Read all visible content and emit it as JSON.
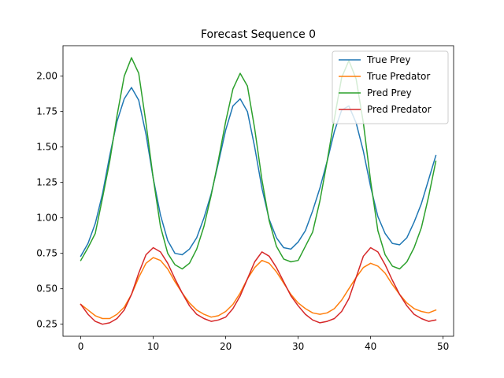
{
  "chart_data": {
    "type": "line",
    "title": "Forecast Sequence 0",
    "xlabel": "",
    "ylabel": "",
    "xlim": [
      -2.45,
      51.45
    ],
    "ylim": [
      0.165,
      2.215
    ],
    "xticks": [
      0,
      10,
      20,
      30,
      40,
      50
    ],
    "yticks": [
      0.25,
      0.5,
      0.75,
      1.0,
      1.25,
      1.5,
      1.75,
      2.0
    ],
    "grid": false,
    "legend_position": "top-right",
    "series": [
      {
        "name": "True Prey",
        "color": "#1f77b4",
        "values": [
          0.73,
          0.82,
          0.96,
          1.17,
          1.44,
          1.68,
          1.84,
          1.92,
          1.83,
          1.59,
          1.28,
          1.02,
          0.84,
          0.75,
          0.74,
          0.78,
          0.86,
          1.0,
          1.17,
          1.39,
          1.62,
          1.79,
          1.84,
          1.75,
          1.5,
          1.21,
          0.99,
          0.86,
          0.79,
          0.78,
          0.83,
          0.91,
          1.05,
          1.21,
          1.4,
          1.61,
          1.76,
          1.79,
          1.67,
          1.47,
          1.22,
          1.01,
          0.89,
          0.82,
          0.81,
          0.86,
          0.97,
          1.1,
          1.27,
          1.44
        ]
      },
      {
        "name": "True Predator",
        "color": "#ff7f0e",
        "values": [
          0.39,
          0.35,
          0.31,
          0.29,
          0.29,
          0.32,
          0.37,
          0.46,
          0.58,
          0.68,
          0.72,
          0.7,
          0.64,
          0.55,
          0.47,
          0.4,
          0.35,
          0.32,
          0.3,
          0.31,
          0.34,
          0.39,
          0.47,
          0.57,
          0.65,
          0.7,
          0.68,
          0.62,
          0.54,
          0.46,
          0.4,
          0.36,
          0.33,
          0.32,
          0.33,
          0.36,
          0.42,
          0.5,
          0.58,
          0.65,
          0.68,
          0.66,
          0.61,
          0.53,
          0.46,
          0.4,
          0.36,
          0.34,
          0.33,
          0.35
        ]
      },
      {
        "name": "Pred Prey",
        "color": "#2ca02c",
        "values": [
          0.7,
          0.79,
          0.89,
          1.14,
          1.4,
          1.72,
          2.0,
          2.13,
          2.02,
          1.67,
          1.28,
          0.94,
          0.75,
          0.67,
          0.64,
          0.68,
          0.78,
          0.94,
          1.16,
          1.41,
          1.68,
          1.91,
          2.02,
          1.93,
          1.63,
          1.27,
          0.98,
          0.8,
          0.71,
          0.69,
          0.7,
          0.8,
          0.9,
          1.12,
          1.4,
          1.7,
          1.99,
          2.11,
          1.98,
          1.67,
          1.26,
          0.91,
          0.74,
          0.66,
          0.64,
          0.69,
          0.79,
          0.93,
          1.15,
          1.4
        ]
      },
      {
        "name": "Pred Predator",
        "color": "#d62728",
        "values": [
          0.39,
          0.32,
          0.27,
          0.25,
          0.26,
          0.29,
          0.35,
          0.46,
          0.61,
          0.74,
          0.79,
          0.76,
          0.68,
          0.57,
          0.47,
          0.38,
          0.32,
          0.29,
          0.27,
          0.28,
          0.3,
          0.36,
          0.45,
          0.57,
          0.69,
          0.76,
          0.73,
          0.65,
          0.55,
          0.45,
          0.38,
          0.32,
          0.28,
          0.26,
          0.27,
          0.29,
          0.34,
          0.43,
          0.58,
          0.73,
          0.79,
          0.76,
          0.67,
          0.56,
          0.46,
          0.38,
          0.32,
          0.29,
          0.27,
          0.28
        ]
      }
    ]
  }
}
